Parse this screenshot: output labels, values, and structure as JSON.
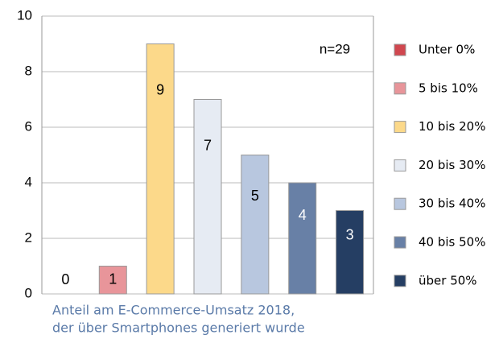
{
  "chart_data": {
    "type": "bar",
    "categories": [
      "Unter 0%",
      "5 bis 10%",
      "10 bis 20%",
      "20 bis 30%",
      "30 bis 40%",
      "40 bis 50%",
      "über 50%"
    ],
    "values": [
      0,
      1,
      9,
      7,
      5,
      4,
      3
    ],
    "colors": [
      "#d0474f",
      "#e8959a",
      "#fcd98a",
      "#e6ebf3",
      "#b8c7df",
      "#6880a6",
      "#253e63"
    ],
    "ylim": [
      0,
      10
    ],
    "yticks": [
      0,
      2,
      4,
      6,
      8,
      10
    ],
    "grid": true,
    "annotation": "n=29",
    "xlabel": [
      "Anteil am E-Commerce-Umsatz 2018,",
      "der über Smartphones generiert wurde"
    ],
    "legend": "right"
  }
}
